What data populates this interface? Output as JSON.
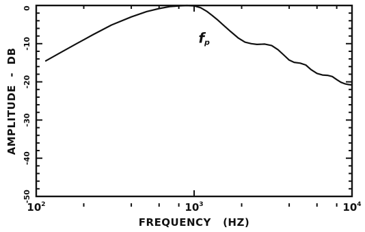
{
  "chart_data": {
    "type": "line",
    "title": "",
    "xlabel": "FREQUENCY   (HZ)",
    "ylabel": "AMPLITUDE  -  DB",
    "x_scale": "log",
    "xlim": [
      100,
      10000
    ],
    "ylim": [
      -50,
      0
    ],
    "grid": false,
    "x_tick_labels": [
      {
        "value": 100,
        "base": "10",
        "exp": "2"
      },
      {
        "value": 1000,
        "base": "10",
        "exp": "3"
      },
      {
        "value": 10000,
        "base": "10",
        "exp": "4"
      }
    ],
    "x_minor_ticks": [
      200,
      400,
      600,
      800,
      2000,
      4000,
      6000,
      8000
    ],
    "y_ticks": [
      {
        "value": 0,
        "label": "0"
      },
      {
        "value": -10,
        "label": "-10"
      },
      {
        "value": -20,
        "label": "-20"
      },
      {
        "value": -30,
        "label": "-30"
      },
      {
        "value": -40,
        "label": "-40"
      },
      {
        "value": -50,
        "label": "-50"
      }
    ],
    "y_minor_step": 2,
    "annotations": [
      {
        "text": "f",
        "subscript": "p",
        "x": 1300,
        "y": -4
      }
    ],
    "series": [
      {
        "x": [
          115,
          140,
          180,
          230,
          300,
          400,
          500,
          600,
          700,
          800,
          900,
          1000,
          1100,
          1200,
          1300,
          1400,
          1500,
          1700,
          1900,
          2100,
          2300,
          2500,
          2800,
          3100,
          3400,
          3700,
          4000,
          4300,
          4700,
          5100,
          5500,
          6000,
          6500,
          7000,
          7500,
          8000,
          8500,
          9000,
          9500,
          10000
        ],
        "y": [
          -14.5,
          -12.5,
          -10.0,
          -7.6,
          -5.1,
          -3.0,
          -1.6,
          -0.8,
          -0.3,
          -0.1,
          0.0,
          -0.1,
          -0.6,
          -1.5,
          -2.6,
          -3.7,
          -4.8,
          -6.8,
          -8.5,
          -9.6,
          -10.0,
          -10.2,
          -10.1,
          -10.5,
          -11.6,
          -13.0,
          -14.3,
          -14.9,
          -15.1,
          -15.6,
          -16.8,
          -17.8,
          -18.2,
          -18.3,
          -18.6,
          -19.4,
          -20.1,
          -20.5,
          -20.7,
          -20.8
        ]
      }
    ]
  }
}
